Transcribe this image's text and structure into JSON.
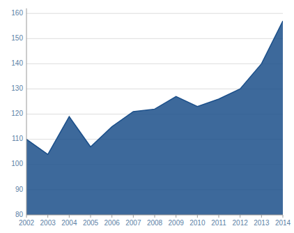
{
  "chart_data": {
    "type": "area",
    "x": [
      2002,
      2003,
      2004,
      2005,
      2006,
      2007,
      2008,
      2009,
      2010,
      2011,
      2012,
      2013,
      2014
    ],
    "values": [
      110,
      104,
      119,
      107,
      115,
      121,
      122,
      127,
      123,
      126,
      130,
      140,
      157
    ],
    "color": "#1b4f8a",
    "xlim": [
      2002,
      2014
    ],
    "xticks": [
      2002,
      2003,
      2004,
      2005,
      2006,
      2007,
      2008,
      2009,
      2010,
      2011,
      2012,
      2013,
      2014
    ],
    "ylim": [
      80,
      162
    ],
    "yticks": [
      80,
      90,
      100,
      110,
      120,
      130,
      140,
      150,
      160
    ],
    "grid": true
  }
}
